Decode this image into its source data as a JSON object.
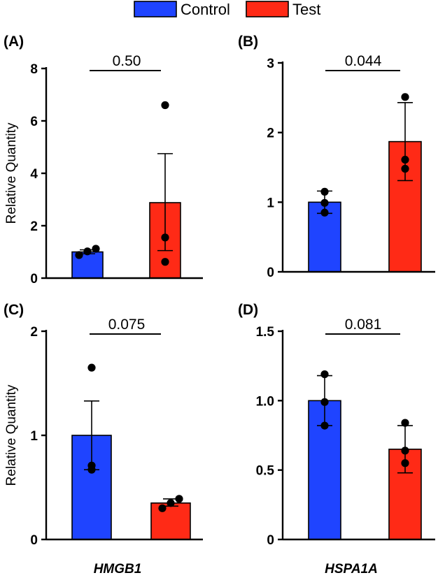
{
  "legend": [
    {
      "label": "Control",
      "color": "#1f44ff"
    },
    {
      "label": "Test",
      "color": "#ff2a16"
    }
  ],
  "chart_data": [
    {
      "type": "bar",
      "panel": "(A)",
      "ylabel": "Relative Quantity",
      "xlabel": "",
      "ylim": [
        0,
        8
      ],
      "yticks": [
        0,
        2,
        4,
        6,
        8
      ],
      "ytick_labels": [
        "0",
        "2",
        "4",
        "6",
        "8"
      ],
      "categories": [
        "Control",
        "Test"
      ],
      "values": [
        1.0,
        2.88
      ],
      "error_low": [
        0.93,
        1.05
      ],
      "error_high": [
        1.08,
        4.75
      ],
      "points": [
        [
          0.88,
          1.02,
          1.12
        ],
        [
          0.62,
          1.55,
          6.6
        ]
      ],
      "p_value": "0.50"
    },
    {
      "type": "bar",
      "panel": "(B)",
      "ylabel": "",
      "xlabel": "",
      "ylim": [
        0,
        3
      ],
      "yticks": [
        0,
        1,
        2,
        3
      ],
      "ytick_labels": [
        "0",
        "1",
        "2",
        "3"
      ],
      "categories": [
        "Control",
        "Test"
      ],
      "values": [
        1.0,
        1.87
      ],
      "error_low": [
        0.84,
        1.31
      ],
      "error_high": [
        1.16,
        2.43
      ],
      "points": [
        [
          0.85,
          0.99,
          1.15
        ],
        [
          1.48,
          1.61,
          2.51
        ]
      ],
      "p_value": "0.044"
    },
    {
      "type": "bar",
      "panel": "(C)",
      "ylabel": "Relative Quantity",
      "xlabel": "HMGB1",
      "ylim": [
        0,
        2
      ],
      "yticks": [
        0,
        1,
        2
      ],
      "ytick_labels": [
        "0",
        "1",
        "2"
      ],
      "categories": [
        "Control",
        "Test"
      ],
      "values": [
        1.0,
        0.35
      ],
      "error_low": [
        0.67,
        0.32
      ],
      "error_high": [
        1.33,
        0.39
      ],
      "points": [
        [
          0.67,
          0.71,
          1.65
        ],
        [
          0.3,
          0.35,
          0.39
        ]
      ],
      "p_value": "0.075"
    },
    {
      "type": "bar",
      "panel": "(D)",
      "ylabel": "",
      "xlabel": "HSPA1A",
      "ylim": [
        0,
        1.5
      ],
      "yticks": [
        0,
        0.5,
        1.0,
        1.5
      ],
      "ytick_labels": [
        "0",
        "0.5",
        "1.0",
        "1.5"
      ],
      "categories": [
        "Control",
        "Test"
      ],
      "values": [
        1.0,
        0.65
      ],
      "error_low": [
        0.82,
        0.48
      ],
      "error_high": [
        1.18,
        0.82
      ],
      "points": [
        [
          0.82,
          0.99,
          1.19
        ],
        [
          0.55,
          0.64,
          0.84
        ]
      ],
      "p_value": "0.081"
    }
  ]
}
